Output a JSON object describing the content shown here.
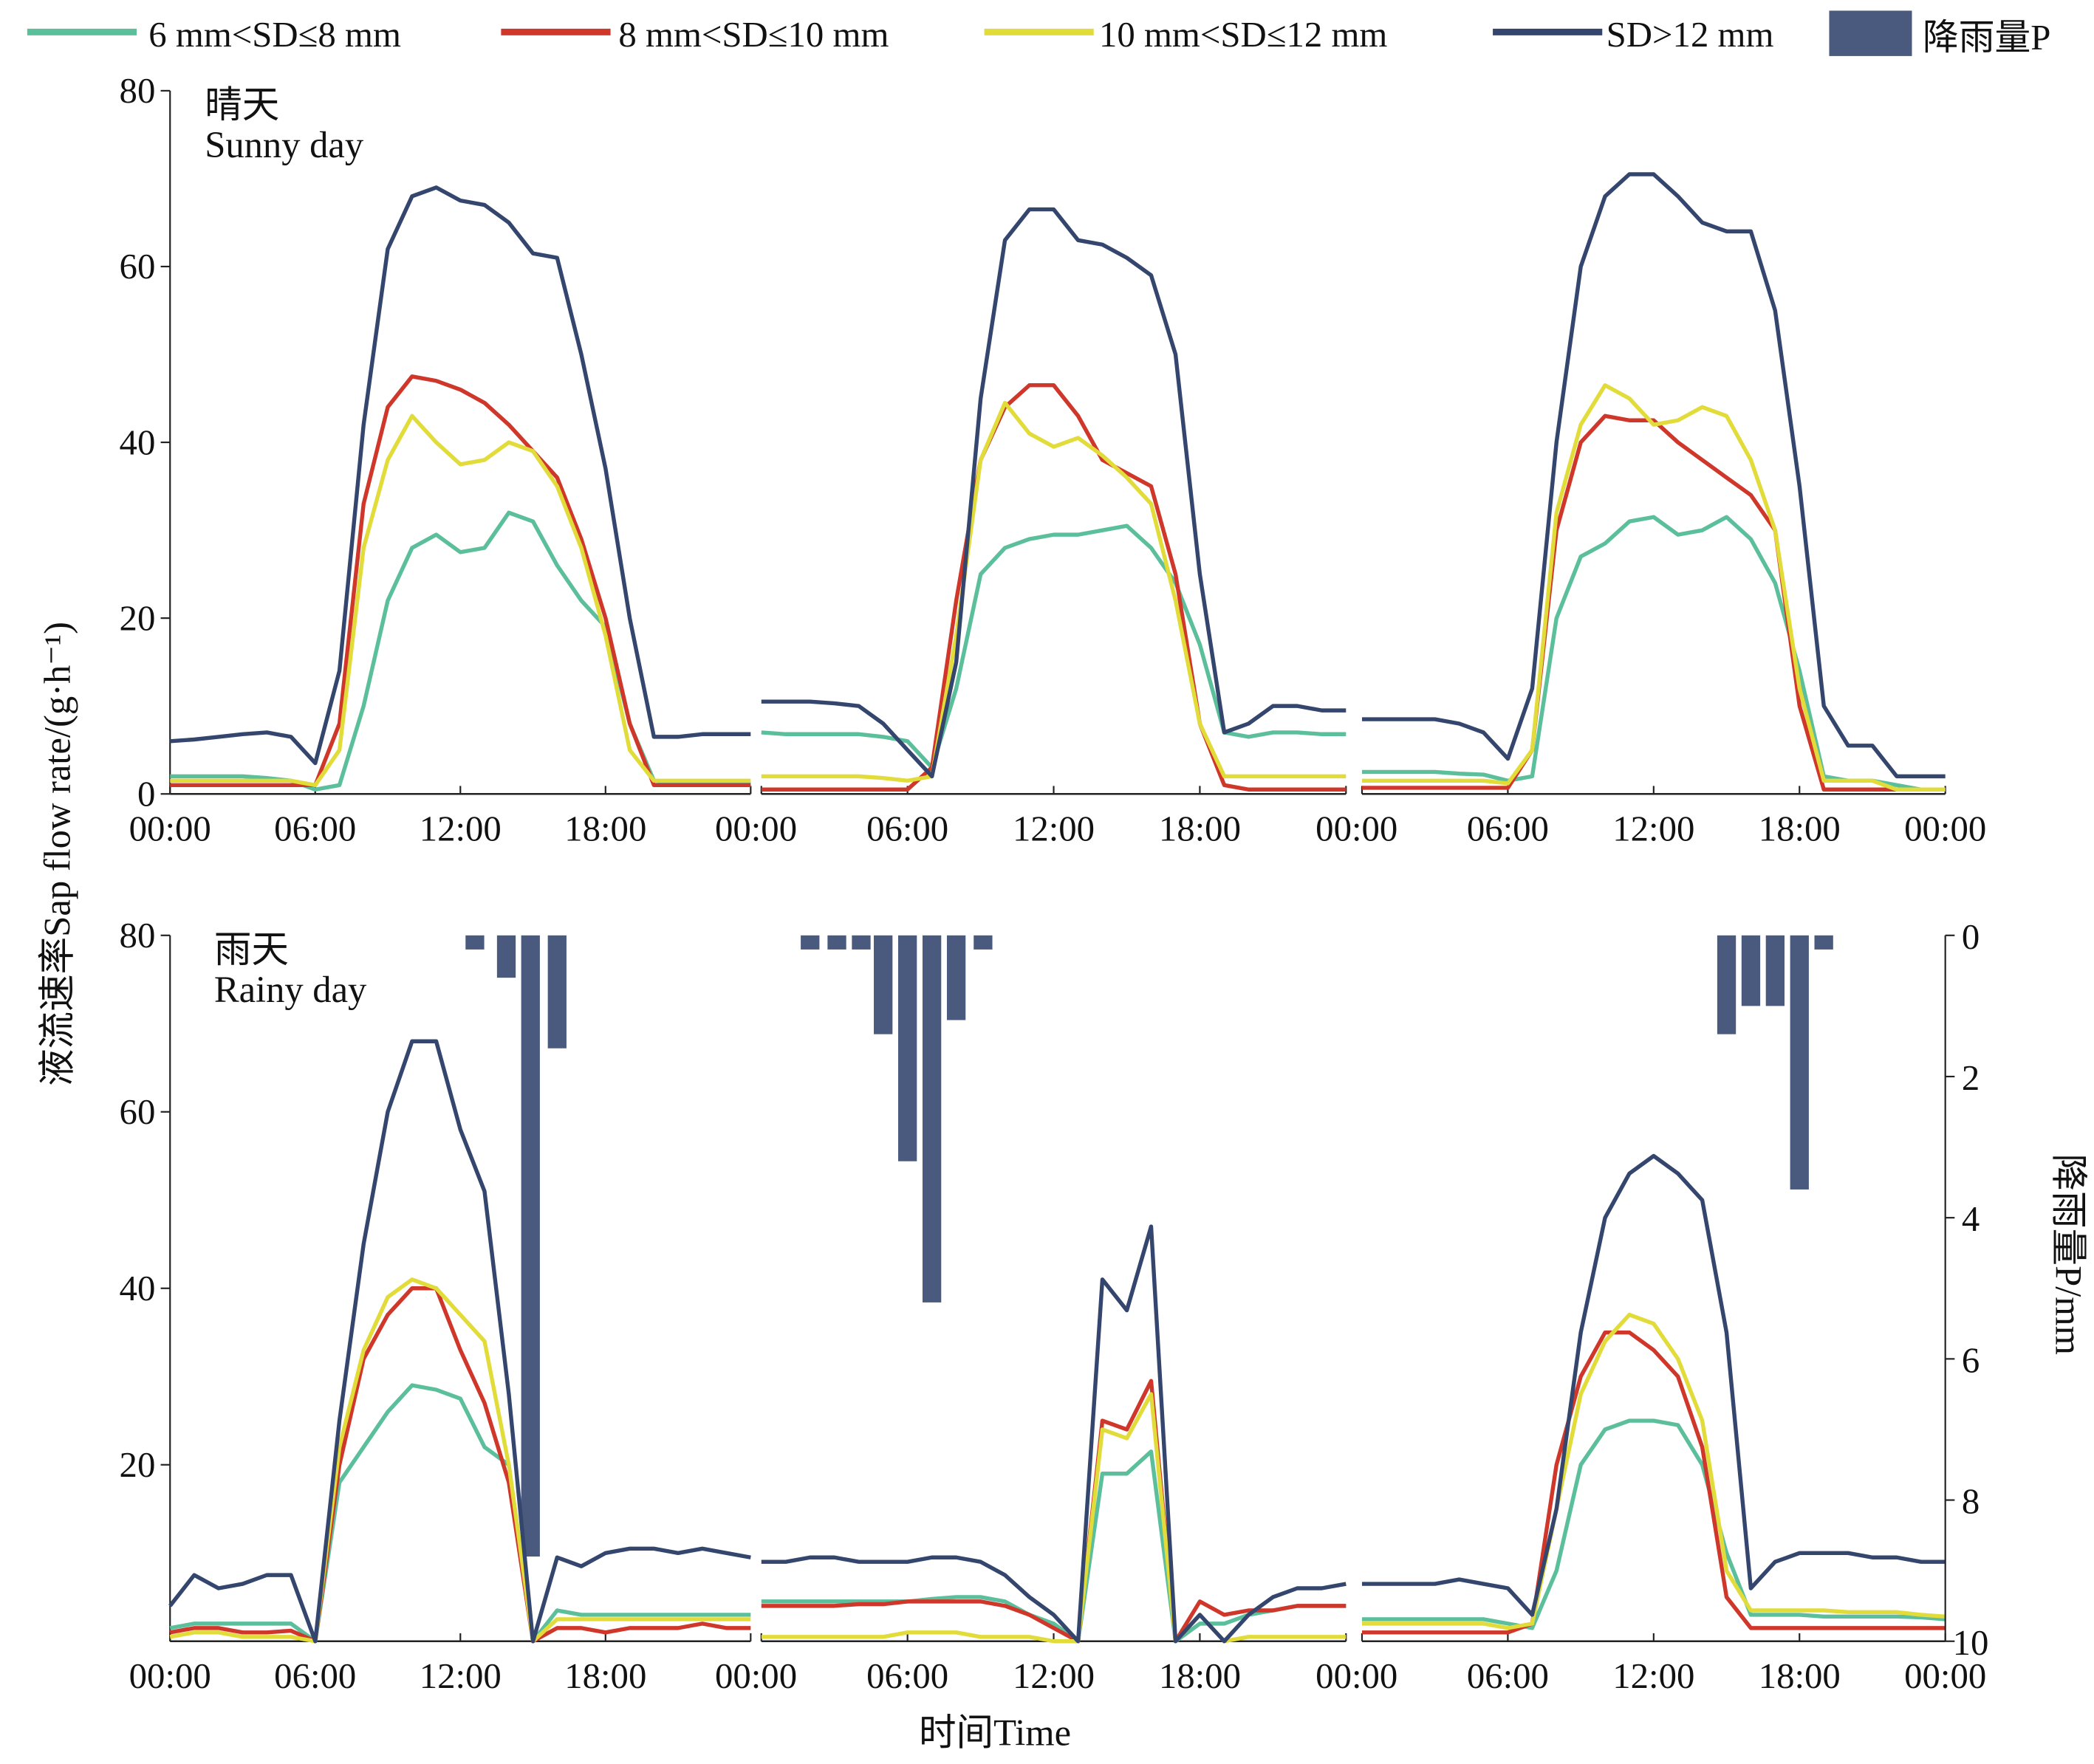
{
  "chart_data": {
    "type": "line",
    "xlabel": "时间Time",
    "ylabel": "液流速率Sap flow rate/(g·h⁻¹)",
    "y2label": "降雨量P/mm",
    "x_tick_labels": [
      "00:00",
      "06:00",
      "12:00",
      "18:00",
      "00:00"
    ],
    "x_tick_hours": [
      0,
      6,
      12,
      18,
      24
    ],
    "hours": [
      0,
      1,
      2,
      3,
      4,
      5,
      6,
      7,
      8,
      9,
      10,
      11,
      12,
      13,
      14,
      15,
      16,
      17,
      18,
      19,
      20,
      21,
      22,
      23,
      24
    ],
    "ylim": [
      0,
      80
    ],
    "y_ticks_top": [
      "0",
      "20",
      "40",
      "60",
      "80"
    ],
    "y_ticks_bottom": [
      "20",
      "40",
      "60",
      "80"
    ],
    "y2lim": [
      0,
      10
    ],
    "y2_inverted": true,
    "y2_ticks": [
      "0",
      "2",
      "4",
      "6",
      "8",
      "10"
    ],
    "grid": false,
    "legend_position": "top",
    "legend": {
      "series": [
        {
          "name": "6 mm<SD≤8 mm",
          "color": "#5cbf9c"
        },
        {
          "name": "8 mm<SD≤10 mm",
          "color": "#d0372b"
        },
        {
          "name": "10 mm<SD≤12 mm",
          "color": "#e2dc3a"
        },
        {
          "name": "SD>12 mm",
          "color": "#34466e"
        }
      ],
      "rain": {
        "name": "降雨量P",
        "color": "#4a5a7e"
      }
    },
    "panels": [
      {
        "label_cn": "晴天",
        "label_en": "Sunny day",
        "days": [
          {
            "series": [
              [
                2,
                2,
                2,
                2,
                1.8,
                1.5,
                0.5,
                1,
                10,
                22,
                28,
                29.5,
                27.5,
                28,
                32,
                31,
                26,
                22,
                19,
                8,
                1.5,
                1.2,
                1.2,
                1.2,
                1.2
              ],
              [
                1,
                1,
                1,
                1,
                1,
                1,
                1,
                8,
                33,
                44,
                47.5,
                47,
                46,
                44.5,
                42,
                39,
                36,
                29,
                20,
                8,
                1,
                1,
                1,
                1,
                1
              ],
              [
                1.5,
                1.5,
                1.5,
                1.5,
                1.5,
                1.5,
                1,
                5,
                28,
                38,
                43,
                40,
                37.5,
                38,
                40,
                39,
                35,
                28,
                18,
                5,
                1.5,
                1.5,
                1.5,
                1.5,
                1.5
              ],
              [
                6,
                6.2,
                6.5,
                6.8,
                7,
                6.5,
                3.5,
                14,
                42,
                62,
                68,
                69,
                67.5,
                67,
                65,
                61.5,
                61,
                50,
                37,
                20,
                6.5,
                6.5,
                6.8,
                6.8,
                6.8
              ]
            ],
            "rain": []
          },
          {
            "series": [
              [
                7,
                6.8,
                6.8,
                6.8,
                6.8,
                6.5,
                6,
                3,
                12,
                25,
                28,
                29,
                29.5,
                29.5,
                30,
                30.5,
                28,
                24,
                17,
                7,
                6.5,
                7,
                7,
                6.8,
                6.8
              ],
              [
                0.5,
                0.5,
                0.5,
                0.5,
                0.5,
                0.5,
                0.5,
                3,
                22,
                38,
                44,
                46.5,
                46.5,
                43,
                38,
                36.5,
                35,
                25,
                8,
                1,
                0.5,
                0.5,
                0.5,
                0.5,
                0.5
              ],
              [
                2,
                2,
                2,
                2,
                2,
                1.8,
                1.5,
                2,
                18,
                38,
                44.5,
                41,
                39.5,
                40.5,
                38.5,
                36,
                33,
                22,
                8,
                2,
                2,
                2,
                2,
                2,
                2
              ],
              [
                10.5,
                10.5,
                10.5,
                10.3,
                10,
                8,
                5,
                2,
                15,
                45,
                63,
                66.5,
                66.5,
                63,
                62.5,
                61,
                59,
                50,
                25,
                7,
                8,
                10,
                10,
                9.5,
                9.5
              ]
            ],
            "rain": []
          },
          {
            "series": [
              [
                2.5,
                2.5,
                2.5,
                2.5,
                2.3,
                2.2,
                1.5,
                2,
                20,
                27,
                28.5,
                31,
                31.5,
                29.5,
                30,
                31.5,
                29,
                24,
                14,
                2,
                1.5,
                1.5,
                1,
                0.5,
                0.5
              ],
              [
                0.7,
                0.7,
                0.7,
                0.7,
                0.7,
                0.7,
                0.7,
                5,
                30,
                40,
                43,
                42.5,
                42.5,
                40,
                38,
                36,
                34,
                30,
                10,
                0.5,
                0.5,
                0.5,
                0.5,
                0.5,
                0.5
              ],
              [
                1.5,
                1.5,
                1.5,
                1.5,
                1.5,
                1.5,
                1.2,
                5,
                32,
                42,
                46.5,
                45,
                42,
                42.5,
                44,
                43,
                38,
                30,
                12,
                1.5,
                1.5,
                1.5,
                0.5,
                0.5,
                0.5
              ],
              [
                8.5,
                8.5,
                8.5,
                8.5,
                8,
                7,
                4,
                12,
                40,
                60,
                68,
                70.5,
                70.5,
                68,
                65,
                64,
                64,
                55,
                35,
                10,
                5.5,
                5.5,
                2,
                2,
                2
              ]
            ],
            "rain": []
          }
        ]
      },
      {
        "label_cn": "雨天",
        "label_en": "Rainy day",
        "days": [
          {
            "series": [
              [
                1.5,
                2,
                2,
                2,
                2,
                2,
                0,
                18,
                22,
                26,
                29,
                28.5,
                27.5,
                22,
                20,
                0,
                3.5,
                3,
                3,
                3,
                3,
                3,
                3,
                3,
                3
              ],
              [
                1,
                1.5,
                1.5,
                1,
                1,
                1.2,
                0,
                20,
                32,
                37,
                40,
                40,
                33,
                27,
                18,
                0,
                1.5,
                1.5,
                1,
                1.5,
                1.5,
                1.5,
                2,
                1.5,
                1.5
              ],
              [
                0.5,
                1,
                1,
                0.5,
                0.5,
                0.5,
                0,
                22,
                33,
                39,
                41,
                40,
                37,
                34,
                20,
                0,
                2.5,
                2.5,
                2.5,
                2.5,
                2.5,
                2.5,
                2.5,
                2.5,
                2.5
              ],
              [
                4,
                7.5,
                6,
                6.5,
                7.5,
                7.5,
                0,
                25,
                45,
                60,
                68,
                68,
                58,
                51,
                28,
                0,
                9.5,
                8.5,
                10,
                10.5,
                10.5,
                10,
                10.5,
                10,
                9.5
              ]
            ],
            "rain": [
              {
                "hour": 12.6,
                "mm": 0.2
              },
              {
                "hour": 13.9,
                "mm": 0.6
              },
              {
                "hour": 14.9,
                "mm": 8.8
              },
              {
                "hour": 16,
                "mm": 1.6
              }
            ]
          },
          {
            "series": [
              [
                4.5,
                4.5,
                4.5,
                4.5,
                4.5,
                4.5,
                4.5,
                4.8,
                5,
                5,
                4.5,
                3,
                2,
                0,
                19,
                19,
                21.5,
                0,
                2,
                2,
                3,
                3.5,
                4,
                4,
                4
              ],
              [
                4,
                4,
                4,
                4,
                4.2,
                4.2,
                4.5,
                4.5,
                4.5,
                4.5,
                4,
                3,
                1.5,
                0,
                25,
                24,
                29.5,
                0,
                4.5,
                3,
                3.5,
                3.5,
                4,
                4,
                4
              ],
              [
                0.5,
                0.5,
                0.5,
                0.5,
                0.5,
                0.5,
                1,
                1,
                1,
                0.5,
                0.5,
                0.5,
                0,
                0,
                24,
                23,
                28,
                0,
                3,
                0,
                0.5,
                0.5,
                0.5,
                0.5,
                0.5
              ],
              [
                9,
                9,
                9.5,
                9.5,
                9,
                9,
                9,
                9.5,
                9.5,
                9,
                7.5,
                5,
                3,
                0,
                41,
                37.5,
                47,
                0,
                3,
                0,
                3,
                5,
                6,
                6,
                6.5
              ]
            ],
            "rain": [
              {
                "hour": 2,
                "mm": 0.2
              },
              {
                "hour": 3.1,
                "mm": 0.2
              },
              {
                "hour": 4.1,
                "mm": 0.2
              },
              {
                "hour": 5,
                "mm": 1.4
              },
              {
                "hour": 6,
                "mm": 3.2
              },
              {
                "hour": 7,
                "mm": 5.2
              },
              {
                "hour": 8,
                "mm": 1.2
              },
              {
                "hour": 9.1,
                "mm": 0.2
              }
            ]
          },
          {
            "series": [
              [
                2.5,
                2.5,
                2.5,
                2.5,
                2.5,
                2.5,
                2,
                1.5,
                8,
                20,
                24,
                25,
                25,
                24.5,
                20,
                10,
                3,
                3,
                3,
                2.8,
                2.8,
                2.8,
                2.8,
                2.7,
                2.5
              ],
              [
                1,
                1,
                1,
                1,
                1,
                1,
                1,
                2,
                20,
                30,
                35,
                35,
                33,
                30,
                22,
                5,
                1.5,
                1.5,
                1.5,
                1.5,
                1.5,
                1.5,
                1.5,
                1.5,
                1.5
              ],
              [
                2,
                2,
                2,
                2,
                2,
                2,
                1.5,
                2,
                15,
                28,
                34,
                37,
                36,
                32,
                25,
                8,
                3.5,
                3.5,
                3.5,
                3.5,
                3.3,
                3.3,
                3.3,
                3,
                2.8
              ],
              [
                6.5,
                6.5,
                6.5,
                6.5,
                7,
                6.5,
                6,
                3,
                15,
                35,
                48,
                53,
                55,
                53,
                50,
                35,
                6,
                9,
                10,
                10,
                10,
                9.5,
                9.5,
                9,
                9
              ]
            ],
            "rain": [
              {
                "hour": 15,
                "mm": 1.4
              },
              {
                "hour": 16,
                "mm": 1.0
              },
              {
                "hour": 17,
                "mm": 1.0
              },
              {
                "hour": 18,
                "mm": 3.6
              },
              {
                "hour": 19,
                "mm": 0.2
              }
            ]
          }
        ]
      }
    ]
  }
}
